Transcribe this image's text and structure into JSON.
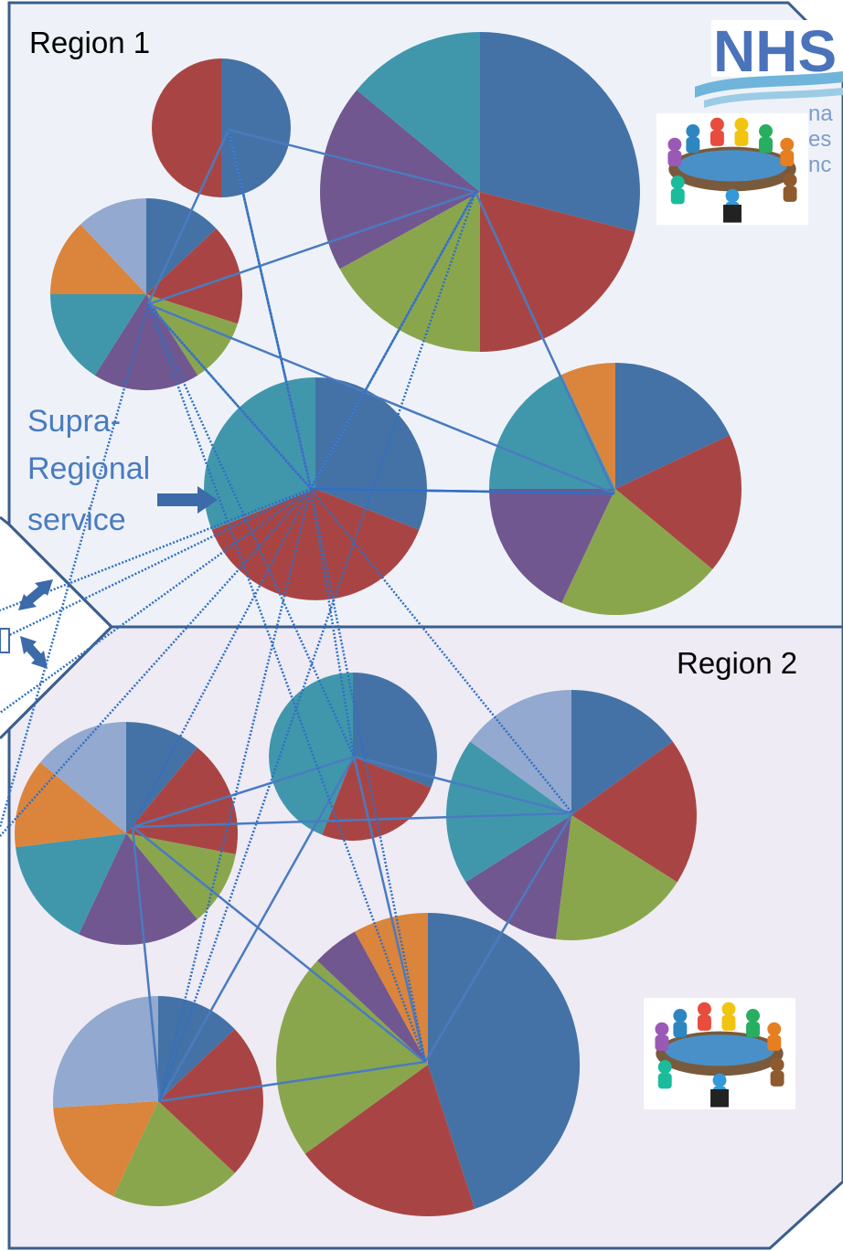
{
  "regions": [
    {
      "id": "region-1",
      "label": "Region 1"
    },
    {
      "id": "region-2",
      "label": "Region 2"
    }
  ],
  "supra_regional": {
    "line1": "Supra-",
    "line2": "Regional",
    "line3": "service"
  },
  "logo": {
    "text": "NHS",
    "partial_lines": [
      "na",
      "es",
      "nc"
    ]
  },
  "colors": {
    "blue": "#4472A6",
    "red": "#A84544",
    "green": "#8AA64D",
    "purple": "#71578F",
    "teal": "#4097AC",
    "orange": "#DB843C",
    "lightblue": "#93A9CF",
    "line": "#4A7BC0",
    "region1_fill": "#EEF2F8",
    "region2_fill": "#EEEBF4",
    "border": "#3B5E8C",
    "nhs_blue": "#4B73BB"
  },
  "icons": [
    "meeting-table-icon",
    "double-arrow-icon",
    "right-arrow-icon"
  ],
  "chart_data": [
    {
      "type": "pie",
      "name": "region-1-pie-1",
      "values": {
        "blue": 50,
        "red": 50
      }
    },
    {
      "type": "pie",
      "name": "region-1-pie-2",
      "values": {
        "blue": 29,
        "red": 21,
        "green": 17,
        "purple": 19,
        "teal": 14
      }
    },
    {
      "type": "pie",
      "name": "region-1-pie-3",
      "values": {
        "blue": 13,
        "red": 17,
        "green": 11,
        "purple": 18,
        "teal": 16,
        "orange": 13,
        "lightblue": 12
      }
    },
    {
      "type": "pie",
      "name": "supra-regional-pie",
      "values": {
        "blue": 31,
        "red": 38,
        "teal": 31
      }
    },
    {
      "type": "pie",
      "name": "region-1-pie-5",
      "values": {
        "blue": 18,
        "red": 18,
        "green": 21,
        "purple": 18,
        "teal": 18,
        "orange": 7
      }
    },
    {
      "type": "pie",
      "name": "region-2-pie-1",
      "values": {
        "blue": 11,
        "red": 17,
        "green": 11,
        "purple": 18,
        "teal": 16,
        "orange": 13,
        "lightblue": 14
      }
    },
    {
      "type": "pie",
      "name": "region-2-pie-2",
      "values": {
        "blue": 31,
        "red": 25,
        "teal": 44
      }
    },
    {
      "type": "pie",
      "name": "region-2-pie-3",
      "values": {
        "blue": 15,
        "red": 19,
        "green": 18,
        "purple": 14,
        "teal": 19,
        "lightblue": 15
      }
    },
    {
      "type": "pie",
      "name": "region-2-pie-4",
      "values": {
        "blue": 13,
        "red": 24,
        "green": 20,
        "orange": 17,
        "lightblue": 26
      }
    },
    {
      "type": "pie",
      "name": "region-2-pie-5",
      "values": {
        "blue": 45,
        "red": 20,
        "green": 22,
        "purple": 5,
        "orange": 8
      }
    }
  ]
}
